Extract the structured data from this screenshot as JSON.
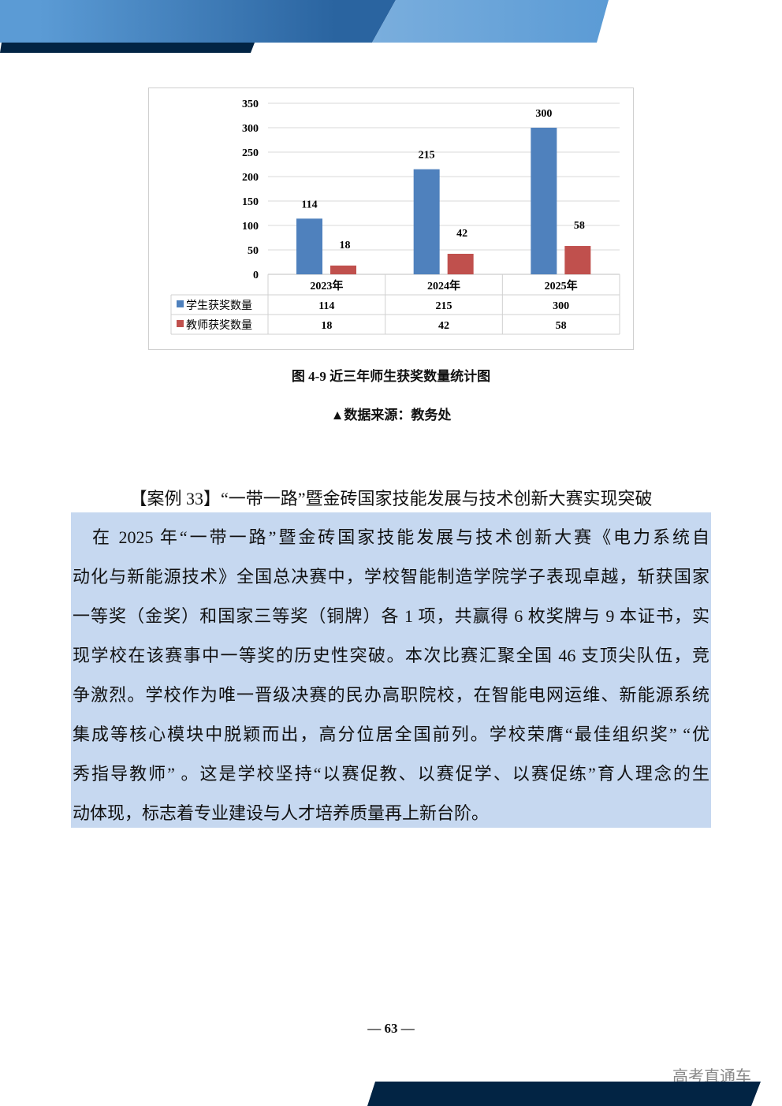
{
  "colors": {
    "header_blue_dark": "#2a64a0",
    "header_blue_light": "#6ea6da",
    "navy": "#022444",
    "student": "#4f81bd",
    "teacher": "#c0504d",
    "case_bg": "#c6d8f0"
  },
  "chart_data": {
    "type": "bar",
    "categories": [
      "2023年",
      "2024年",
      "2025年"
    ],
    "series": [
      {
        "name": "学生获奖数量",
        "values": [
          114,
          215,
          300
        ],
        "color": "#4f81bd"
      },
      {
        "name": "教师获奖数量",
        "values": [
          18,
          42,
          58
        ],
        "color": "#c0504d"
      }
    ],
    "yticks": [
      0,
      50,
      100,
      150,
      200,
      250,
      300,
      350
    ],
    "ylim": [
      0,
      350
    ],
    "grid": true,
    "legend": "data-table-left",
    "data_labels": true
  },
  "figure": {
    "caption": "图 4-9  近三年师生获奖数量统计图",
    "source": "▲数据来源：教务处"
  },
  "case": {
    "title": "【案例 33】“一带一路”暨金砖国家技能发展与技术创新大赛实现突破",
    "lines": [
      "　在 2025 年“一带一路”暨金砖国家技能发展与技术创新大赛《电力系统自",
      "动化与新能源技术》全国总决赛中，学校智能制造学院学子表现卓越，斩获国家",
      "一等奖（金奖）和国家三等奖（铜牌）各 1 项，共赢得 6 枚奖牌与 9 本证书，实",
      "现学校在该赛事中一等奖的历史性突破。本次比赛汇聚全国 46 支顶尖队伍，竞",
      "争激烈。学校作为唯一晋级决赛的民办高职院校，在智能电网运维、新能源系统",
      "集成等核心模块中脱颖而出，高分位居全国前列。学校荣膺“最佳组织奖” “优",
      "秀指导教师” 。这是学校坚持“以赛促教、以赛促学、以赛促练”育人理念的生",
      "动体现，标志着专业建设与人才培养质量再上新台阶。"
    ]
  },
  "footer": {
    "page_number": "— 63 —",
    "watermark": "高考直通车"
  }
}
